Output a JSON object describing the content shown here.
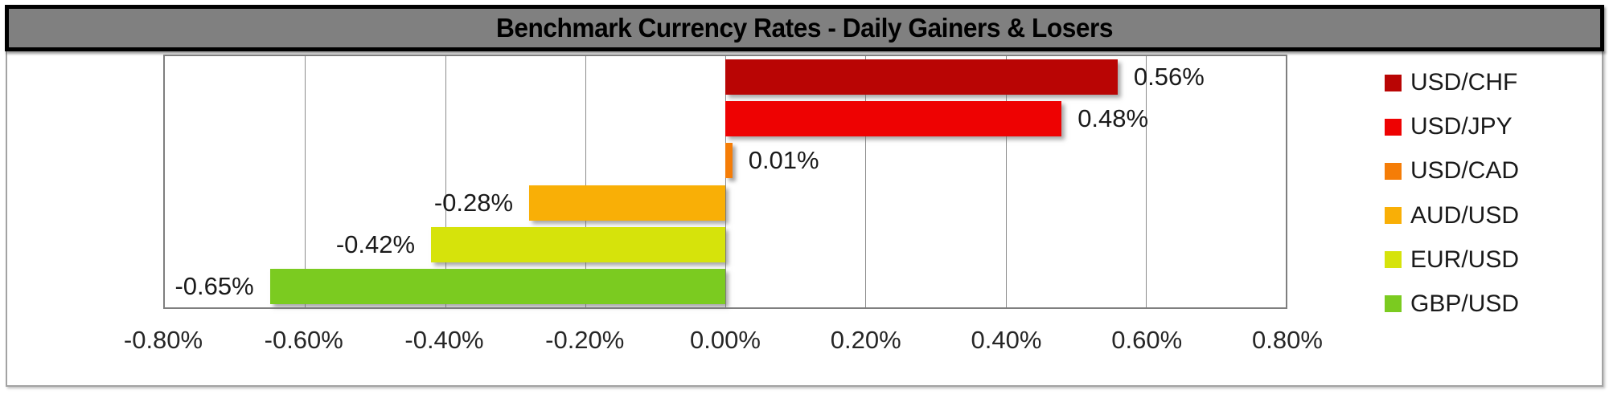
{
  "title": "Benchmark Currency Rates - Daily Gainers & Losers",
  "chart_data": {
    "type": "bar",
    "orientation": "horizontal",
    "title": "Benchmark Currency Rates - Daily Gainers & Losers",
    "series": [
      {
        "name": "USD/CHF",
        "value": 0.56,
        "label": "0.56%",
        "color": "#b90504"
      },
      {
        "name": "USD/JPY",
        "value": 0.48,
        "label": "0.48%",
        "color": "#ee0202"
      },
      {
        "name": "USD/CAD",
        "value": 0.01,
        "label": "0.01%",
        "color": "#f57d07"
      },
      {
        "name": "AUD/USD",
        "value": -0.28,
        "label": "-0.28%",
        "color": "#f9af06"
      },
      {
        "name": "EUR/USD",
        "value": -0.42,
        "label": "-0.42%",
        "color": "#d6e30b"
      },
      {
        "name": "GBP/USD",
        "value": -0.65,
        "label": "-0.65%",
        "color": "#7bcb20"
      }
    ],
    "xlim": [
      -0.8,
      0.8
    ],
    "xticks": [
      "-0.80%",
      "-0.60%",
      "-0.40%",
      "-0.20%",
      "0.00%",
      "0.20%",
      "0.40%",
      "0.60%",
      "0.80%"
    ],
    "grid": true,
    "legend_position": "right",
    "value_labels": "outside-end"
  },
  "colors": {
    "title_bar_bg": "#808080",
    "title_border": "#000000",
    "frame_border": "#a3a3a3",
    "plot_border": "#7f7f7f",
    "gridline": "#8c8c8c",
    "label_text": "#1a1a1a"
  }
}
